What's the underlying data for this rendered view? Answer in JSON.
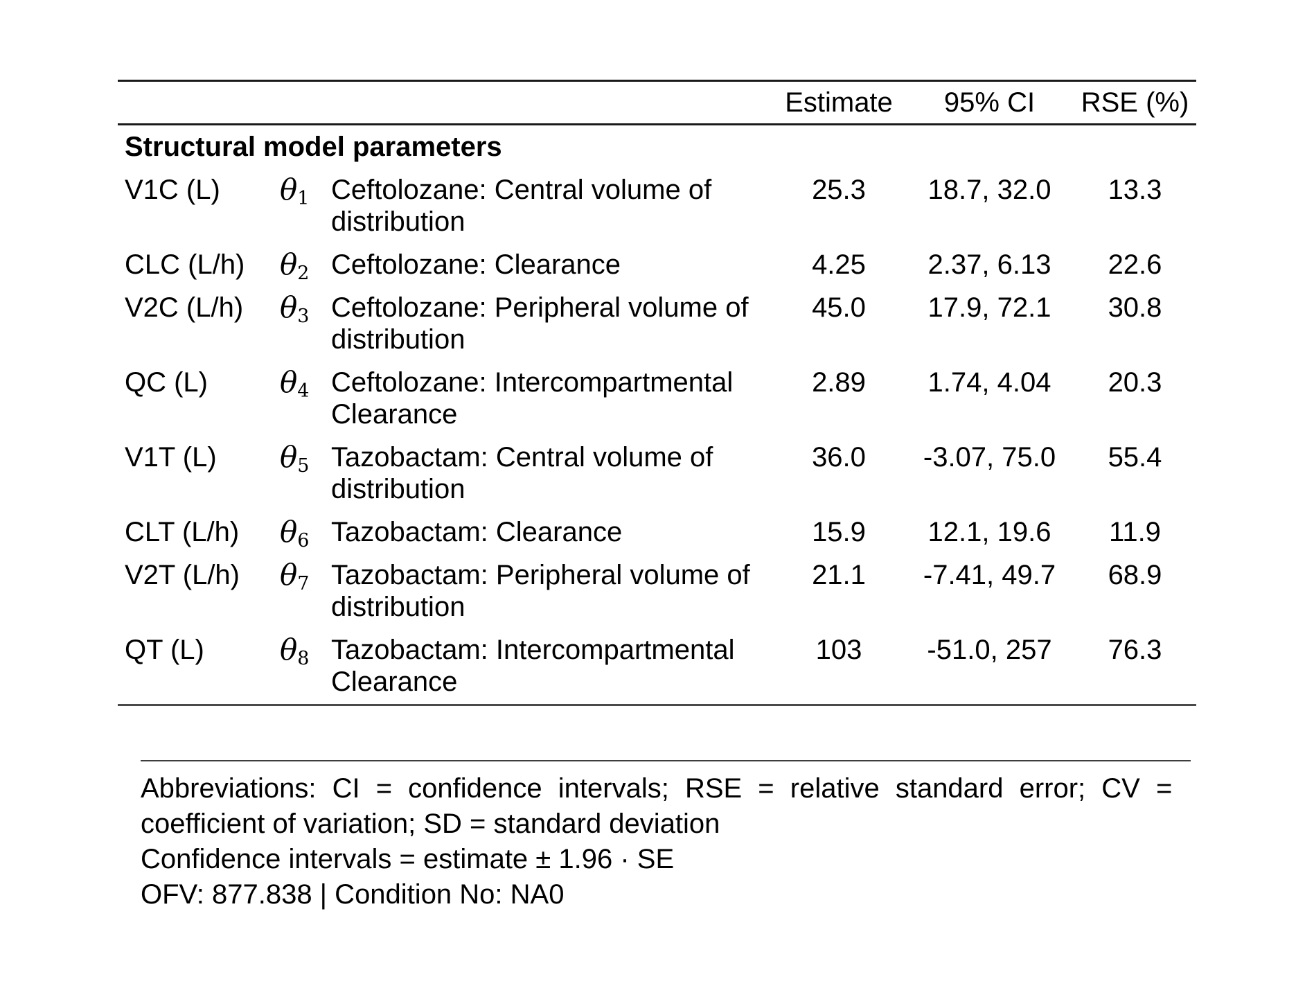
{
  "table": {
    "headers": {
      "estimate": "Estimate",
      "ci": "95% CI",
      "rse": "RSE (%)"
    },
    "section_header": "Structural model parameters",
    "rows": [
      {
        "param": "V1C (L)",
        "theta_symbol": "θ",
        "theta_sub": "1",
        "description": "Ceftolozane: Central volume of\ndistribution",
        "estimate": "25.3",
        "ci": "18.7, 32.0",
        "rse": "13.3"
      },
      {
        "param": "CLC (L/h)",
        "theta_symbol": "θ",
        "theta_sub": "2",
        "description": "Ceftolozane: Clearance",
        "estimate": "4.25",
        "ci": "2.37, 6.13",
        "rse": "22.6"
      },
      {
        "param": "V2C (L/h)",
        "theta_symbol": "θ",
        "theta_sub": "3",
        "description": "Ceftolozane: Peripheral volume of\ndistribution",
        "estimate": "45.0",
        "ci": "17.9, 72.1",
        "rse": "30.8"
      },
      {
        "param": "QC (L)",
        "theta_symbol": "θ",
        "theta_sub": "4",
        "description": "Ceftolozane: Intercompartmental\nClearance",
        "estimate": "2.89",
        "ci": "1.74, 4.04",
        "rse": "20.3"
      },
      {
        "param": "V1T (L)",
        "theta_symbol": "θ",
        "theta_sub": "5",
        "description": "Tazobactam: Central volume of\ndistribution",
        "estimate": "36.0",
        "ci": "-3.07, 75.0",
        "rse": "55.4"
      },
      {
        "param": "CLT (L/h)",
        "theta_symbol": "θ",
        "theta_sub": "6",
        "description": "Tazobactam: Clearance",
        "estimate": "15.9",
        "ci": "12.1, 19.6",
        "rse": "11.9"
      },
      {
        "param": "V2T (L/h)",
        "theta_symbol": "θ",
        "theta_sub": "7",
        "description": "Tazobactam: Peripheral volume of\ndistribution",
        "estimate": "21.1",
        "ci": "-7.41, 49.7",
        "rse": "68.9"
      },
      {
        "param": "QT (L)",
        "theta_symbol": "θ",
        "theta_sub": "8",
        "description": "Tazobactam: Intercompartmental\nClearance",
        "estimate": "103",
        "ci": "-51.0, 257",
        "rse": "76.3"
      }
    ]
  },
  "footnotes": {
    "lines": [
      "Abbreviations:  CI = confidence intervals;  RSE = relative standard error;  CV =",
      "coefficient of variation; SD = standard deviation",
      "Confidence intervals = estimate ± 1.96 · SE",
      "OFV: 877.838 | Condition No: NA0"
    ]
  }
}
